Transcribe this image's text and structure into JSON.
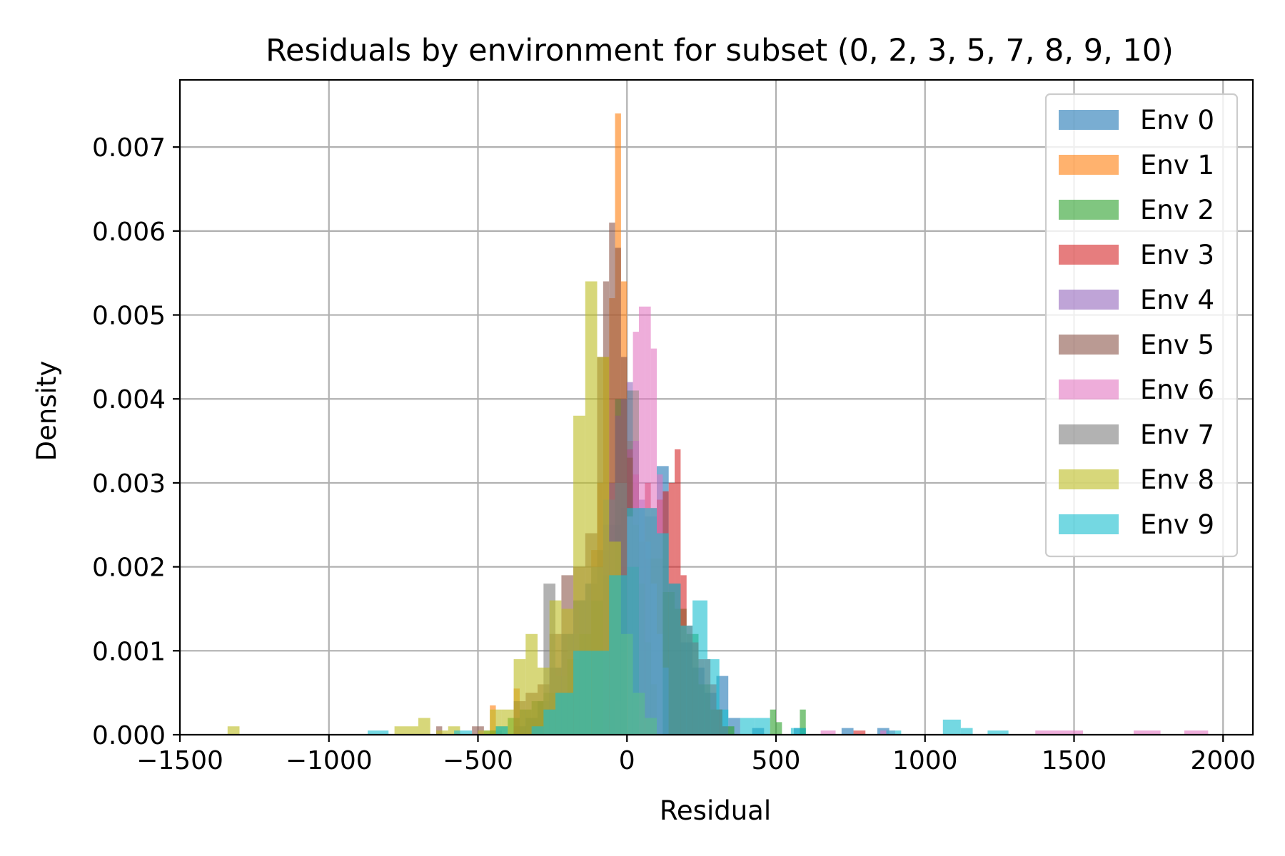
{
  "chart_data": {
    "type": "histogram",
    "title": "Residuals by environment for subset (0, 2, 3, 5, 7, 8, 9, 10)",
    "xlabel": "Residual",
    "ylabel": "Density",
    "xlim": [
      -1500,
      2100
    ],
    "ylim": [
      0,
      0.0078
    ],
    "xticks": [
      -1500,
      -1000,
      -500,
      0,
      500,
      1000,
      1500,
      2000
    ],
    "xtick_labels": [
      "−1500",
      "−1000",
      "−500",
      "0",
      "500",
      "1000",
      "1500",
      "2000"
    ],
    "yticks": [
      0,
      0.001,
      0.002,
      0.003,
      0.004,
      0.005,
      0.006,
      0.007
    ],
    "ytick_labels": [
      "0.000",
      "0.001",
      "0.002",
      "0.003",
      "0.004",
      "0.005",
      "0.006",
      "0.007"
    ],
    "grid": true,
    "legend_position": "top-right",
    "bar_alpha": 0.6,
    "series": [
      {
        "name": "Env 0",
        "color": "#1f77b4",
        "bins": [
          [
            -460,
            -420,
            5e-05
          ],
          [
            -380,
            -340,
            0.0001
          ],
          [
            -340,
            -300,
            0.0002
          ],
          [
            -300,
            -260,
            0.0004
          ],
          [
            -260,
            -220,
            0.0008
          ],
          [
            -220,
            -180,
            0.0012
          ],
          [
            -180,
            -140,
            0.0016
          ],
          [
            -140,
            -100,
            0.0018
          ],
          [
            -100,
            -60,
            0.0022
          ],
          [
            -60,
            -20,
            0.0025
          ],
          [
            -20,
            20,
            0.0027
          ],
          [
            20,
            60,
            0.0027
          ],
          [
            60,
            100,
            0.0026
          ],
          [
            100,
            140,
            0.0032
          ],
          [
            140,
            180,
            0.0018
          ],
          [
            180,
            220,
            0.0011
          ],
          [
            220,
            260,
            0.0008
          ],
          [
            260,
            300,
            0.0005
          ],
          [
            300,
            340,
            0.0007
          ],
          [
            340,
            380,
            0.0002
          ],
          [
            420,
            460,
            8e-05
          ],
          [
            560,
            600,
            8e-05
          ],
          [
            720,
            760,
            8e-05
          ],
          [
            840,
            880,
            8e-05
          ]
        ]
      },
      {
        "name": "Env 1",
        "color": "#ff7f0e",
        "bins": [
          [
            -460,
            -440,
            0.00035
          ],
          [
            -380,
            -360,
            0.00055
          ],
          [
            -40,
            -20,
            0.0074
          ],
          [
            -20,
            0,
            0.0054
          ],
          [
            -80,
            -60,
            0.0045
          ],
          [
            -60,
            -40,
            0.0052
          ],
          [
            0,
            20,
            0.0035
          ],
          [
            20,
            40,
            0.003
          ],
          [
            -120,
            -100,
            0.0022
          ],
          [
            -100,
            -80,
            0.003
          ],
          [
            40,
            60,
            0.0023
          ],
          [
            60,
            80,
            0.0021
          ]
        ]
      },
      {
        "name": "Env 2",
        "color": "#2ca02c",
        "bins": [
          [
            -480,
            -440,
            5e-05
          ],
          [
            -440,
            -400,
            0.0001
          ],
          [
            -400,
            -360,
            0.0002
          ],
          [
            -360,
            -320,
            0.0003
          ],
          [
            -320,
            -280,
            0.0004
          ],
          [
            -280,
            -240,
            0.0005
          ],
          [
            -240,
            -200,
            0.0005
          ],
          [
            -200,
            -160,
            0.0009
          ],
          [
            -160,
            -120,
            0.0012
          ],
          [
            -120,
            -80,
            0.0016
          ],
          [
            -80,
            -40,
            0.0019
          ],
          [
            -40,
            0,
            0.004
          ],
          [
            0,
            40,
            0.0041
          ],
          [
            40,
            80,
            0.0023
          ],
          [
            80,
            120,
            0.0021
          ],
          [
            120,
            160,
            0.0017
          ],
          [
            160,
            200,
            0.0015
          ],
          [
            200,
            240,
            0.0012
          ],
          [
            240,
            280,
            0.0006
          ],
          [
            280,
            320,
            0.0003
          ],
          [
            320,
            360,
            0.0001
          ],
          [
            480,
            500,
            0.0003
          ],
          [
            500,
            520,
            0.00015
          ],
          [
            580,
            600,
            0.0003
          ]
        ]
      },
      {
        "name": "Env 3",
        "color": "#d62728",
        "bins": [
          [
            -40,
            -20,
            0.0004
          ],
          [
            -20,
            0,
            0.002
          ],
          [
            0,
            20,
            0.0034
          ],
          [
            20,
            40,
            0.0031
          ],
          [
            40,
            60,
            0.0027
          ],
          [
            60,
            80,
            0.003
          ],
          [
            80,
            100,
            0.0027
          ],
          [
            100,
            120,
            0.0028
          ],
          [
            120,
            140,
            0.0029
          ],
          [
            140,
            160,
            0.003
          ],
          [
            160,
            180,
            0.0034
          ],
          [
            180,
            200,
            0.0019
          ],
          [
            200,
            220,
            0.0013
          ],
          [
            220,
            240,
            0.0011
          ],
          [
            240,
            260,
            0.0009
          ],
          [
            260,
            280,
            0.0009
          ],
          [
            280,
            300,
            0.0006
          ],
          [
            300,
            320,
            0.0003
          ],
          [
            320,
            340,
            0.0001
          ],
          [
            760,
            800,
            5e-05
          ]
        ]
      },
      {
        "name": "Env 4",
        "color": "#9467bd",
        "bins": [
          [
            -80,
            -60,
            0.0025
          ],
          [
            -60,
            -40,
            0.003
          ],
          [
            -40,
            -20,
            0.0038
          ],
          [
            -20,
            0,
            0.004
          ],
          [
            0,
            20,
            0.0042
          ],
          [
            20,
            40,
            0.0035
          ],
          [
            40,
            60,
            0.0028
          ],
          [
            60,
            80,
            0.0023
          ],
          [
            80,
            100,
            0.0018
          ],
          [
            100,
            120,
            0.0012
          ],
          [
            120,
            140,
            0.0008
          ]
        ]
      },
      {
        "name": "Env 5",
        "color": "#8c564b",
        "bins": [
          [
            -640,
            -620,
            0.0001
          ],
          [
            -520,
            -480,
            0.0001
          ],
          [
            -380,
            -340,
            0.0004
          ],
          [
            -340,
            -300,
            0.0005
          ],
          [
            -300,
            -260,
            0.0006
          ],
          [
            -260,
            -220,
            0.0012
          ],
          [
            -220,
            -180,
            0.0019
          ],
          [
            -180,
            -140,
            0.002
          ],
          [
            -140,
            -100,
            0.0024
          ],
          [
            -100,
            -80,
            0.0045
          ],
          [
            -80,
            -60,
            0.0054
          ],
          [
            -60,
            -40,
            0.0061
          ],
          [
            -40,
            -20,
            0.0058
          ],
          [
            -20,
            0,
            0.0045
          ],
          [
            0,
            20,
            0.0033
          ],
          [
            20,
            40,
            0.0025
          ],
          [
            40,
            60,
            0.0018
          ],
          [
            60,
            80,
            0.0011
          ],
          [
            80,
            100,
            0.0006
          ]
        ]
      },
      {
        "name": "Env 6",
        "color": "#e377c2",
        "bins": [
          [
            20,
            40,
            0.0048
          ],
          [
            40,
            60,
            0.0051
          ],
          [
            60,
            80,
            0.0051
          ],
          [
            80,
            100,
            0.0046
          ],
          [
            100,
            120,
            0.0031
          ],
          [
            0,
            20,
            0.0026
          ],
          [
            650,
            700,
            5e-05
          ],
          [
            850,
            900,
            5e-05
          ],
          [
            1370,
            1530,
            5e-05
          ],
          [
            1700,
            1790,
            5e-05
          ],
          [
            1870,
            1950,
            5e-05
          ]
        ]
      },
      {
        "name": "Env 7",
        "color": "#7f7f7f",
        "bins": [
          [
            -280,
            -240,
            0.0018
          ],
          [
            -240,
            -200,
            0.0007
          ],
          [
            -200,
            -160,
            0.0012
          ],
          [
            -160,
            -120,
            0.0016
          ],
          [
            -120,
            -80,
            0.002
          ],
          [
            -80,
            -40,
            0.0028
          ],
          [
            -40,
            0,
            0.003
          ],
          [
            0,
            40,
            0.002
          ]
        ]
      },
      {
        "name": "Env 8",
        "color": "#bcbd22",
        "bins": [
          [
            -1340,
            -1300,
            0.0001
          ],
          [
            -780,
            -700,
            0.0001
          ],
          [
            -700,
            -660,
            0.0002
          ],
          [
            -640,
            -600,
            5e-05
          ],
          [
            -600,
            -560,
            0.0001
          ],
          [
            -500,
            -460,
            5e-05
          ],
          [
            -460,
            -420,
            0.0003
          ],
          [
            -420,
            -380,
            0.0003
          ],
          [
            -380,
            -340,
            0.0009
          ],
          [
            -340,
            -300,
            0.0012
          ],
          [
            -300,
            -260,
            0.0008
          ],
          [
            -260,
            -220,
            0.0016
          ],
          [
            -220,
            -180,
            0.0015
          ],
          [
            -180,
            -140,
            0.0038
          ],
          [
            -140,
            -100,
            0.0054
          ],
          [
            -100,
            -60,
            0.0045
          ],
          [
            -60,
            -20,
            0.0023
          ],
          [
            -20,
            20,
            0.0012
          ],
          [
            20,
            60,
            0.0005
          ],
          [
            60,
            100,
            0.0002
          ]
        ]
      },
      {
        "name": "Env 9",
        "color": "#17becf",
        "bins": [
          [
            -870,
            -800,
            5e-05
          ],
          [
            -580,
            -520,
            5e-05
          ],
          [
            -440,
            -400,
            0.0001
          ],
          [
            -320,
            -280,
            0.0001
          ],
          [
            -280,
            -240,
            0.0003
          ],
          [
            -240,
            -180,
            0.0005
          ],
          [
            -180,
            -120,
            0.001
          ],
          [
            -120,
            -60,
            0.001
          ],
          [
            -60,
            0,
            0.0019
          ],
          [
            0,
            60,
            0.0027
          ],
          [
            60,
            100,
            0.0027
          ],
          [
            100,
            140,
            0.0024
          ],
          [
            140,
            180,
            0.0018
          ],
          [
            180,
            220,
            0.0013
          ],
          [
            220,
            270,
            0.0016
          ],
          [
            270,
            310,
            0.0009
          ],
          [
            310,
            340,
            0.0003
          ],
          [
            380,
            430,
            0.0002
          ],
          [
            430,
            480,
            0.0002
          ],
          [
            550,
            600,
            8e-05
          ],
          [
            870,
            920,
            5e-05
          ],
          [
            1060,
            1120,
            0.00018
          ],
          [
            1120,
            1160,
            8e-05
          ],
          [
            1210,
            1280,
            5e-05
          ]
        ]
      }
    ]
  }
}
